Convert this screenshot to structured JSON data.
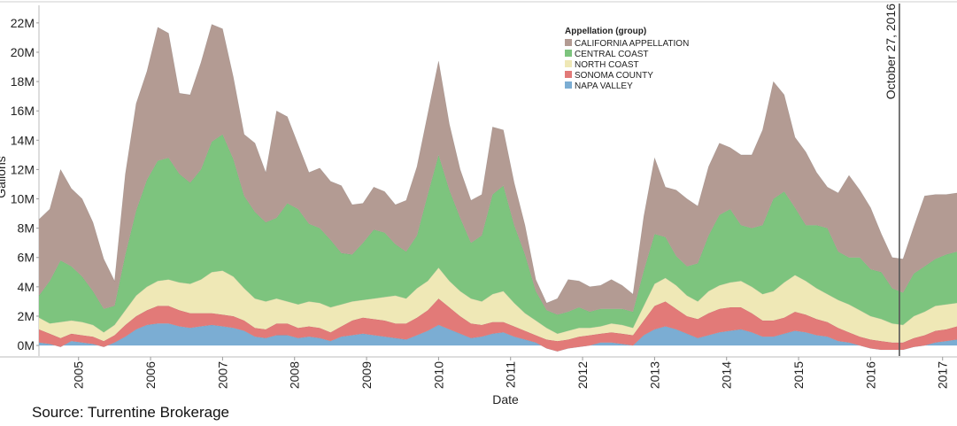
{
  "source_note": "Source: Turrentine Brokerage",
  "chart_data": {
    "type": "area",
    "stacked": true,
    "title": "",
    "xlabel": "Date",
    "ylabel": "Gallons",
    "xlim": [
      2004.45,
      2017.2
    ],
    "ylim": [
      -0.6,
      23.2
    ],
    "y_ticks": [
      0,
      2,
      4,
      6,
      8,
      10,
      12,
      14,
      16,
      18,
      20,
      22
    ],
    "y_tick_labels": [
      "0M",
      "2M",
      "4M",
      "6M",
      "8M",
      "10M",
      "12M",
      "14M",
      "16M",
      "18M",
      "20M",
      "22M"
    ],
    "x_ticks": [
      2005,
      2006,
      2007,
      2008,
      2009,
      2010,
      2011,
      2012,
      2013,
      2014,
      2015,
      2016,
      2017
    ],
    "x_tick_labels": [
      "2005",
      "2006",
      "2007",
      "2008",
      "2009",
      "2010",
      "2011",
      "2012",
      "2013",
      "2014",
      "2015",
      "2016",
      "2017"
    ],
    "legend": {
      "title": "Appellation (group)",
      "position": "top-center"
    },
    "annotation": {
      "label": "October 27, 2016",
      "x": 2016.4
    },
    "x": [
      2004.45,
      2004.6,
      2004.75,
      2004.9,
      2005.05,
      2005.2,
      2005.35,
      2005.5,
      2005.65,
      2005.8,
      2005.95,
      2006.1,
      2006.25,
      2006.4,
      2006.55,
      2006.7,
      2006.85,
      2007.0,
      2007.15,
      2007.3,
      2007.45,
      2007.6,
      2007.75,
      2007.9,
      2008.05,
      2008.2,
      2008.35,
      2008.5,
      2008.65,
      2008.8,
      2008.95,
      2009.1,
      2009.25,
      2009.4,
      2009.55,
      2009.7,
      2009.85,
      2010.0,
      2010.15,
      2010.3,
      2010.45,
      2010.6,
      2010.75,
      2010.9,
      2011.05,
      2011.2,
      2011.35,
      2011.5,
      2011.65,
      2011.8,
      2011.95,
      2012.1,
      2012.25,
      2012.4,
      2012.55,
      2012.7,
      2012.85,
      2013.0,
      2013.15,
      2013.3,
      2013.45,
      2013.6,
      2013.75,
      2013.9,
      2014.05,
      2014.2,
      2014.35,
      2014.5,
      2014.65,
      2014.8,
      2014.95,
      2015.1,
      2015.25,
      2015.4,
      2015.55,
      2015.7,
      2015.85,
      2016.0,
      2016.15,
      2016.3,
      2016.45,
      2016.6,
      2016.75,
      2016.9,
      2017.05,
      2017.2
    ],
    "series": [
      {
        "name": "NAPA VALLEY",
        "color": "#7badd3",
        "values": [
          0.2,
          0.1,
          -0.1,
          0.3,
          0.2,
          0.1,
          -0.1,
          0.2,
          0.6,
          1.1,
          1.4,
          1.5,
          1.5,
          1.3,
          1.2,
          1.3,
          1.4,
          1.3,
          1.2,
          1.0,
          0.6,
          0.5,
          0.7,
          0.7,
          0.5,
          0.6,
          0.5,
          0.3,
          0.6,
          0.7,
          0.8,
          0.7,
          0.6,
          0.5,
          0.4,
          0.7,
          1.0,
          1.4,
          1.1,
          0.8,
          0.5,
          0.6,
          0.8,
          0.9,
          0.6,
          0.4,
          0.2,
          -0.2,
          -0.4,
          -0.2,
          -0.1,
          0.0,
          0.2,
          0.2,
          0.1,
          0.0,
          0.7,
          1.1,
          1.3,
          1.1,
          0.8,
          0.5,
          0.7,
          0.9,
          1.0,
          1.1,
          0.9,
          0.6,
          0.6,
          0.8,
          1.0,
          0.9,
          0.7,
          0.6,
          0.3,
          0.2,
          0.0,
          -0.2,
          -0.3,
          -0.3,
          -0.3,
          -0.1,
          0.0,
          0.2,
          0.3,
          0.4
        ]
      },
      {
        "name": "SONOMA COUNTY",
        "color": "#e27a78",
        "values": [
          0.9,
          0.7,
          0.6,
          0.5,
          0.5,
          0.5,
          0.4,
          0.5,
          0.8,
          0.9,
          1.0,
          1.2,
          1.2,
          1.1,
          1.0,
          0.9,
          0.8,
          0.8,
          0.8,
          0.7,
          0.6,
          0.6,
          0.8,
          0.8,
          0.7,
          0.7,
          0.7,
          0.6,
          0.7,
          1.0,
          1.1,
          1.1,
          1.1,
          1.0,
          1.1,
          1.2,
          1.4,
          1.8,
          1.5,
          1.2,
          1.0,
          0.8,
          0.8,
          0.7,
          0.7,
          0.6,
          0.5,
          0.6,
          0.7,
          0.6,
          0.7,
          0.7,
          0.6,
          0.7,
          0.7,
          0.7,
          1.0,
          1.6,
          1.7,
          1.4,
          1.2,
          1.3,
          1.5,
          1.6,
          1.6,
          1.5,
          1.3,
          1.1,
          1.1,
          1.1,
          1.3,
          1.2,
          1.1,
          1.0,
          0.9,
          0.7,
          0.6,
          0.6,
          0.6,
          0.5,
          0.5,
          0.6,
          0.7,
          0.8,
          0.8,
          0.9
        ]
      },
      {
        "name": "NORTH COAST",
        "color": "#efe8b6",
        "values": [
          0.8,
          0.7,
          1.1,
          0.9,
          0.9,
          0.8,
          0.6,
          0.7,
          1.0,
          1.4,
          1.6,
          1.7,
          1.8,
          1.9,
          2.0,
          2.3,
          2.8,
          3.0,
          2.7,
          2.2,
          2.0,
          1.9,
          1.7,
          1.5,
          1.6,
          1.7,
          1.7,
          1.7,
          1.5,
          1.3,
          1.2,
          1.4,
          1.6,
          1.9,
          1.7,
          2.0,
          2.0,
          2.1,
          1.8,
          1.7,
          1.7,
          1.6,
          1.9,
          2.1,
          1.6,
          1.2,
          1.0,
          0.8,
          0.5,
          0.6,
          0.6,
          0.5,
          0.5,
          0.6,
          0.6,
          0.5,
          1.0,
          1.5,
          1.6,
          1.6,
          1.4,
          1.2,
          1.5,
          1.6,
          1.7,
          1.8,
          1.8,
          1.8,
          2.0,
          2.4,
          2.5,
          2.3,
          2.1,
          1.9,
          1.9,
          1.9,
          1.8,
          1.6,
          1.5,
          1.3,
          1.2,
          1.5,
          1.6,
          1.7,
          1.7,
          1.6
        ]
      },
      {
        "name": "CENTRAL COAST",
        "color": "#7dc47e",
        "values": [
          1.5,
          2.9,
          4.2,
          3.7,
          3.1,
          2.3,
          1.6,
          1.3,
          3.8,
          5.8,
          7.3,
          8.2,
          8.3,
          7.4,
          6.9,
          7.5,
          8.9,
          9.3,
          8.0,
          6.3,
          5.9,
          5.4,
          5.5,
          6.7,
          6.5,
          5.3,
          5.1,
          4.6,
          3.5,
          3.2,
          3.9,
          4.7,
          4.4,
          3.5,
          3.2,
          3.6,
          5.9,
          7.7,
          6.2,
          5.0,
          3.8,
          4.5,
          6.8,
          7.2,
          5.3,
          4.0,
          2.0,
          1.2,
          1.3,
          1.3,
          1.4,
          1.1,
          1.2,
          1.0,
          1.1,
          1.1,
          2.4,
          3.4,
          2.8,
          2.0,
          2.0,
          2.6,
          3.8,
          4.8,
          5.0,
          3.8,
          4.0,
          4.7,
          6.3,
          6.2,
          4.6,
          3.8,
          4.3,
          4.5,
          3.3,
          3.2,
          3.6,
          3.2,
          3.2,
          2.4,
          2.2,
          2.9,
          3.1,
          3.2,
          3.4,
          3.5
        ]
      },
      {
        "name": "CALIFORNIA APPELLATION",
        "color": "#b39b93",
        "values": [
          5.2,
          4.9,
          6.2,
          5.3,
          5.3,
          4.7,
          3.4,
          1.7,
          5.5,
          7.3,
          7.4,
          9.1,
          8.5,
          5.5,
          6.0,
          7.3,
          8.0,
          7.2,
          5.6,
          4.2,
          4.7,
          3.4,
          7.3,
          5.9,
          4.4,
          3.5,
          4.1,
          4.0,
          4.6,
          3.4,
          2.7,
          2.9,
          2.8,
          2.7,
          3.5,
          4.7,
          5.5,
          6.4,
          4.5,
          3.3,
          2.9,
          2.8,
          4.6,
          3.8,
          2.9,
          2.0,
          0.8,
          0.5,
          1.1,
          2.2,
          1.8,
          1.7,
          1.6,
          2.0,
          1.6,
          1.2,
          3.7,
          5.2,
          3.4,
          4.5,
          4.6,
          3.9,
          4.7,
          4.9,
          4.2,
          4.8,
          5.0,
          6.5,
          8.0,
          6.6,
          4.8,
          5.0,
          3.6,
          2.8,
          4.0,
          5.6,
          4.6,
          4.2,
          2.6,
          2.1,
          2.3,
          3.2,
          4.8,
          4.4,
          4.1,
          4.0
        ]
      }
    ]
  }
}
